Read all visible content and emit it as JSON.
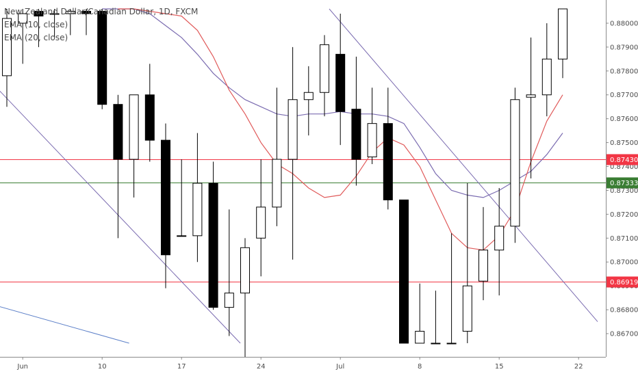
{
  "chart_data": {
    "type": "candlestick",
    "title": "New Zealand Dollar/Canadian Dollar, 1D, FXCM",
    "indicators": [
      {
        "name": "EMA (10, close)",
        "color": "#e05a5a"
      },
      {
        "name": "EMA (20, close)",
        "color": "#7a6bb0"
      }
    ],
    "ylim": [
      0.8666,
      0.8806
    ],
    "y_ticks": [
      0.867,
      0.868,
      0.869,
      0.87,
      0.871,
      0.872,
      0.873,
      0.874,
      0.875,
      0.876,
      0.877,
      0.878,
      0.879,
      0.88
    ],
    "x_tick_labels": [
      {
        "index": 1,
        "label": "Jun"
      },
      {
        "index": 6,
        "label": "10"
      },
      {
        "index": 11,
        "label": "17"
      },
      {
        "index": 16,
        "label": "24"
      },
      {
        "index": 21,
        "label": "Jul"
      },
      {
        "index": 26,
        "label": "8"
      },
      {
        "index": 31,
        "label": "15"
      },
      {
        "index": 36,
        "label": "22"
      }
    ],
    "candles": [
      {
        "o": 0.8778,
        "h": 0.8806,
        "l": 0.8765,
        "c": 0.8802
      },
      {
        "o": 0.88,
        "h": 0.8806,
        "l": 0.8783,
        "c": 0.8804
      },
      {
        "o": 0.8805,
        "h": 0.8806,
        "l": 0.879,
        "c": 0.8803
      },
      {
        "o": 0.8804,
        "h": 0.8806,
        "l": 0.8794,
        "c": 0.8804
      },
      {
        "o": 0.8804,
        "h": 0.8806,
        "l": 0.8795,
        "c": 0.8805
      },
      {
        "o": 0.8805,
        "h": 0.8806,
        "l": 0.8795,
        "c": 0.8804
      },
      {
        "o": 0.8805,
        "h": 0.8806,
        "l": 0.8764,
        "c": 0.8766
      },
      {
        "o": 0.8766,
        "h": 0.877,
        "l": 0.871,
        "c": 0.8743
      },
      {
        "o": 0.8743,
        "h": 0.877,
        "l": 0.8727,
        "c": 0.877
      },
      {
        "o": 0.877,
        "h": 0.8783,
        "l": 0.8742,
        "c": 0.8751
      },
      {
        "o": 0.8751,
        "h": 0.8758,
        "l": 0.8689,
        "c": 0.8703
      },
      {
        "o": 0.8711,
        "h": 0.8743,
        "l": 0.8711,
        "c": 0.8711
      },
      {
        "o": 0.8711,
        "h": 0.8754,
        "l": 0.87,
        "c": 0.8733
      },
      {
        "o": 0.8733,
        "h": 0.8742,
        "l": 0.868,
        "c": 0.8681
      },
      {
        "o": 0.8681,
        "h": 0.8722,
        "l": 0.8669,
        "c": 0.8687
      },
      {
        "o": 0.8687,
        "h": 0.871,
        "l": 0.866,
        "c": 0.8706
      },
      {
        "o": 0.871,
        "h": 0.8743,
        "l": 0.8694,
        "c": 0.8723
      },
      {
        "o": 0.8723,
        "h": 0.8773,
        "l": 0.8715,
        "c": 0.8743
      },
      {
        "o": 0.8743,
        "h": 0.879,
        "l": 0.8701,
        "c": 0.8768
      },
      {
        "o": 0.8768,
        "h": 0.8782,
        "l": 0.8753,
        "c": 0.8771
      },
      {
        "o": 0.8771,
        "h": 0.8795,
        "l": 0.8761,
        "c": 0.8791
      },
      {
        "o": 0.8787,
        "h": 0.8804,
        "l": 0.8749,
        "c": 0.8763
      },
      {
        "o": 0.8764,
        "h": 0.8786,
        "l": 0.8732,
        "c": 0.8743
      },
      {
        "o": 0.8744,
        "h": 0.8773,
        "l": 0.8741,
        "c": 0.8758
      },
      {
        "o": 0.8758,
        "h": 0.8773,
        "l": 0.8722,
        "c": 0.8726
      },
      {
        "o": 0.8726,
        "h": 0.8726,
        "l": 0.8666,
        "c": 0.8666
      },
      {
        "o": 0.8666,
        "h": 0.8691,
        "l": 0.8666,
        "c": 0.8671
      },
      {
        "o": 0.8666,
        "h": 0.8688,
        "l": 0.8666,
        "c": 0.8666
      },
      {
        "o": 0.8666,
        "h": 0.8712,
        "l": 0.8666,
        "c": 0.8666
      },
      {
        "o": 0.8671,
        "h": 0.8733,
        "l": 0.8666,
        "c": 0.869
      },
      {
        "o": 0.8692,
        "h": 0.8723,
        "l": 0.8684,
        "c": 0.8705
      },
      {
        "o": 0.8705,
        "h": 0.8731,
        "l": 0.8686,
        "c": 0.8715
      },
      {
        "o": 0.8715,
        "h": 0.8773,
        "l": 0.8708,
        "c": 0.8768
      },
      {
        "o": 0.8769,
        "h": 0.8794,
        "l": 0.8735,
        "c": 0.877
      },
      {
        "o": 0.877,
        "h": 0.88,
        "l": 0.8761,
        "c": 0.8785
      },
      {
        "o": 0.8785,
        "h": 0.8806,
        "l": 0.8777,
        "c": 0.8806
      }
    ],
    "ema10": [
      0.8806,
      0.8806,
      0.8805,
      0.8804,
      0.8803,
      0.8797,
      0.8786,
      0.8772,
      0.8762,
      0.875,
      0.8741,
      0.8737,
      0.8731,
      0.8727,
      0.8728,
      0.8736,
      0.8746,
      0.8752,
      0.8749,
      0.874,
      0.8726,
      0.8712,
      0.8706,
      0.8705,
      0.8711,
      0.8722,
      0.8742,
      0.8759,
      0.877
    ],
    "ema20": [
      0.8806,
      0.8806,
      0.8806,
      0.8804,
      0.8799,
      0.8794,
      0.8787,
      0.8779,
      0.8773,
      0.8768,
      0.8765,
      0.8762,
      0.8761,
      0.8762,
      0.8762,
      0.8763,
      0.8762,
      0.8762,
      0.8761,
      0.8758,
      0.8748,
      0.8737,
      0.873,
      0.8728,
      0.8727,
      0.873,
      0.8734,
      0.8738,
      0.8745,
      0.8754
    ],
    "horizontal_levels": [
      {
        "value": 0.8743,
        "label": "0.87430",
        "color": "#f23645"
      },
      {
        "value": 0.87333,
        "label": "0.87333",
        "color": "#3a7d33"
      },
      {
        "value": 0.86919,
        "label": "0.86919",
        "color": "#f23645"
      }
    ],
    "trend_lines": [
      {
        "from": {
          "i": -0.5,
          "v": 0.8772
        },
        "to": {
          "i": 14.7,
          "v": 0.8666
        },
        "color": "#7a6bb0"
      },
      {
        "from": {
          "i": 20.3,
          "v": 0.8806
        },
        "to": {
          "i": 37.2,
          "v": 0.8675
        },
        "color": "#7a6bb0"
      },
      {
        "from": {
          "i": -0.5,
          "v": 0.86814
        },
        "to": {
          "i": 7.7,
          "v": 0.8666
        },
        "color": "#5b7fc8"
      }
    ]
  }
}
